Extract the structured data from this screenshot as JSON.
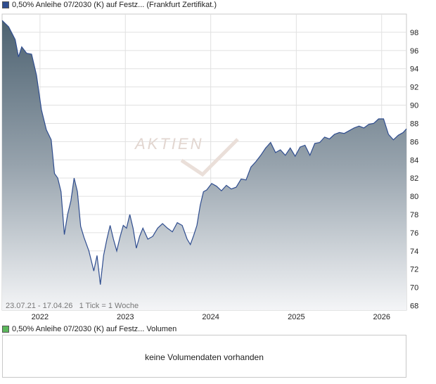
{
  "legend": {
    "price_label": "0,50% Anleihe 07/2030 (K) auf Festz... (Frankfurt Zertifikat.)",
    "price_color": "#2f4d8f",
    "volume_label": "0,50% Anleihe 07/2030 (K) auf Festz... Volumen",
    "volume_color": "#5cb85c"
  },
  "chart_info": "23.07.21 - 17.04.26   1 Tick = 1 Woche",
  "watermark": "AKTIEN",
  "volume_message": "keine Volumendaten vorhanden",
  "chart_data": {
    "type": "area",
    "x_start": "2021-07-23",
    "x_end": "2026-04-17",
    "ylim": [
      67.5,
      100
    ],
    "y_ticks": [
      68,
      70,
      72,
      74,
      76,
      78,
      80,
      82,
      84,
      86,
      88,
      90,
      92,
      94,
      96,
      98
    ],
    "x_ticks": [
      {
        "label": "2022",
        "date": "2022-01-01"
      },
      {
        "label": "2023",
        "date": "2023-01-01"
      },
      {
        "label": "2024",
        "date": "2024-01-01"
      },
      {
        "label": "2025",
        "date": "2025-01-01"
      },
      {
        "label": "2026",
        "date": "2026-01-01"
      }
    ],
    "grid": true,
    "series": [
      {
        "points": [
          [
            "2021-07-23",
            99.3
          ],
          [
            "2021-08-20",
            98.6
          ],
          [
            "2021-09-17",
            97.2
          ],
          [
            "2021-10-01",
            95.3
          ],
          [
            "2021-10-15",
            96.4
          ],
          [
            "2021-11-05",
            95.7
          ],
          [
            "2021-11-26",
            95.6
          ],
          [
            "2021-12-17",
            93.3
          ],
          [
            "2022-01-07",
            89.5
          ],
          [
            "2022-01-28",
            87.3
          ],
          [
            "2022-02-18",
            86.2
          ],
          [
            "2022-03-04",
            82.5
          ],
          [
            "2022-03-18",
            82.0
          ],
          [
            "2022-04-01",
            80.5
          ],
          [
            "2022-04-15",
            75.8
          ],
          [
            "2022-04-29",
            78.0
          ],
          [
            "2022-05-13",
            79.5
          ],
          [
            "2022-05-27",
            82.0
          ],
          [
            "2022-06-10",
            80.5
          ],
          [
            "2022-06-24",
            76.7
          ],
          [
            "2022-07-08",
            75.5
          ],
          [
            "2022-07-29",
            74.0
          ],
          [
            "2022-08-19",
            71.8
          ],
          [
            "2022-09-02",
            73.5
          ],
          [
            "2022-09-16",
            70.3
          ],
          [
            "2022-09-30",
            73.5
          ],
          [
            "2022-10-14",
            75.3
          ],
          [
            "2022-10-28",
            76.8
          ],
          [
            "2022-11-11",
            75.3
          ],
          [
            "2022-11-25",
            74.0
          ],
          [
            "2022-12-09",
            75.5
          ],
          [
            "2022-12-23",
            76.8
          ],
          [
            "2023-01-06",
            76.5
          ],
          [
            "2023-01-20",
            78.0
          ],
          [
            "2023-02-03",
            76.5
          ],
          [
            "2023-02-17",
            74.3
          ],
          [
            "2023-03-03",
            75.6
          ],
          [
            "2023-03-17",
            76.5
          ],
          [
            "2023-04-07",
            75.3
          ],
          [
            "2023-04-28",
            75.6
          ],
          [
            "2023-05-19",
            76.5
          ],
          [
            "2023-06-09",
            77.0
          ],
          [
            "2023-06-30",
            76.5
          ],
          [
            "2023-07-21",
            76.1
          ],
          [
            "2023-08-11",
            77.1
          ],
          [
            "2023-09-01",
            76.8
          ],
          [
            "2023-09-22",
            75.3
          ],
          [
            "2023-10-06",
            74.7
          ],
          [
            "2023-10-20",
            75.7
          ],
          [
            "2023-11-03",
            76.8
          ],
          [
            "2023-11-17",
            79.0
          ],
          [
            "2023-12-01",
            80.5
          ],
          [
            "2023-12-15",
            80.7
          ],
          [
            "2024-01-05",
            81.4
          ],
          [
            "2024-01-26",
            81.1
          ],
          [
            "2024-02-16",
            80.6
          ],
          [
            "2024-03-08",
            81.2
          ],
          [
            "2024-03-29",
            80.8
          ],
          [
            "2024-04-19",
            81.0
          ],
          [
            "2024-05-10",
            81.9
          ],
          [
            "2024-05-31",
            81.8
          ],
          [
            "2024-06-21",
            83.2
          ],
          [
            "2024-07-12",
            83.8
          ],
          [
            "2024-08-02",
            84.5
          ],
          [
            "2024-08-23",
            85.3
          ],
          [
            "2024-09-13",
            85.9
          ],
          [
            "2024-10-04",
            84.8
          ],
          [
            "2024-10-25",
            85.1
          ],
          [
            "2024-11-15",
            84.5
          ],
          [
            "2024-12-06",
            85.3
          ],
          [
            "2024-12-27",
            84.4
          ],
          [
            "2025-01-17",
            85.4
          ],
          [
            "2025-02-07",
            85.6
          ],
          [
            "2025-02-28",
            84.5
          ],
          [
            "2025-03-21",
            85.8
          ],
          [
            "2025-04-11",
            85.9
          ],
          [
            "2025-05-02",
            86.5
          ],
          [
            "2025-05-23",
            86.3
          ],
          [
            "2025-06-13",
            86.8
          ],
          [
            "2025-07-04",
            87.0
          ],
          [
            "2025-07-25",
            86.9
          ],
          [
            "2025-08-15",
            87.2
          ],
          [
            "2025-09-05",
            87.5
          ],
          [
            "2025-09-26",
            87.7
          ],
          [
            "2025-10-17",
            87.5
          ],
          [
            "2025-11-07",
            87.9
          ],
          [
            "2025-11-28",
            88.0
          ],
          [
            "2025-12-19",
            88.5
          ],
          [
            "2026-01-09",
            88.5
          ],
          [
            "2026-01-30",
            86.8
          ],
          [
            "2026-02-20",
            86.2
          ],
          [
            "2026-03-13",
            86.7
          ],
          [
            "2026-04-03",
            87.0
          ],
          [
            "2026-04-17",
            87.4
          ]
        ]
      }
    ]
  }
}
